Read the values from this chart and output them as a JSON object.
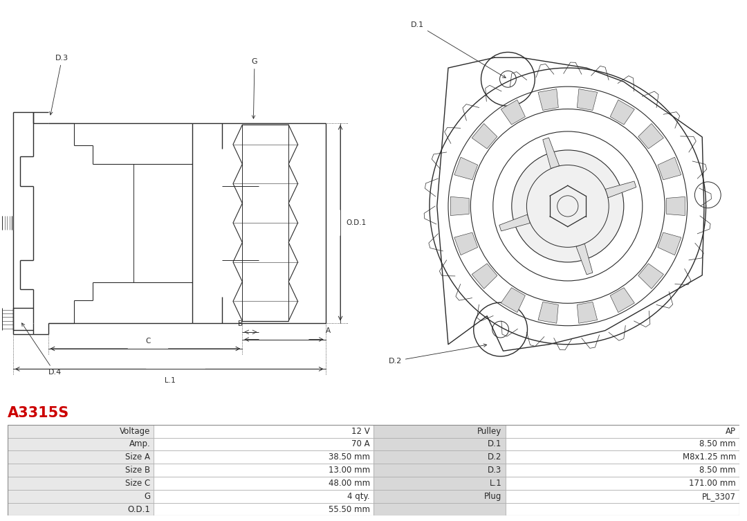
{
  "title": "A3315S",
  "title_color": "#cc0000",
  "title_fontsize": 15,
  "bg_color": "#ffffff",
  "table_rows": [
    [
      "Voltage",
      "12 V",
      "Pulley",
      "AP"
    ],
    [
      "Amp.",
      "70 A",
      "D.1",
      "8.50 mm"
    ],
    [
      "Size A",
      "38.50 mm",
      "D.2",
      "M8x1.25 mm"
    ],
    [
      "Size B",
      "13.00 mm",
      "D.3",
      "8.50 mm"
    ],
    [
      "Size C",
      "48.00 mm",
      "L.1",
      "171.00 mm"
    ],
    [
      "G",
      "4 qty.",
      "Plug",
      "PL_3307"
    ],
    [
      "O.D.1",
      "55.50 mm",
      "",
      ""
    ]
  ],
  "line_color": "#2a2a2a",
  "dim_color": "#2a2a2a",
  "text_color": "#2a2a2a",
  "label_bg": "#e8e8e8",
  "value_bg": "#ffffff",
  "mid_label_bg": "#d8d8d8",
  "table_border_color": "#aaaaaa",
  "font_family": "DejaVu Sans"
}
